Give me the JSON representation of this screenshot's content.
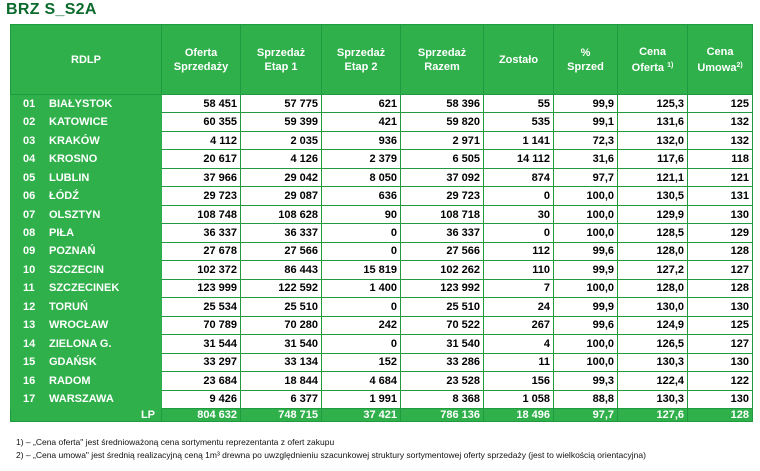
{
  "title": "BRZ S_S2A",
  "headers": {
    "rdlp": "RDLP",
    "oferta": [
      "Oferta",
      "Sprzedaży"
    ],
    "etap1": [
      "Sprzedaż",
      "Etap 1"
    ],
    "etap2": [
      "Sprzedaż",
      "Etap 2"
    ],
    "razem": [
      "Sprzedaż",
      "Razem"
    ],
    "zostalo": "Zostało",
    "proc": [
      "%",
      "Sprzed"
    ],
    "cena_oferta": [
      "Cena",
      "Oferta",
      "1)"
    ],
    "cena_umowa": [
      "Cena",
      "Umowa",
      "2)"
    ]
  },
  "rows": [
    {
      "no": "01",
      "name": "BIAŁYSTOK",
      "oferta": "58 451",
      "etap1": "57 775",
      "etap2": "621",
      "razem": "58 396",
      "zostalo": "55",
      "proc": "99,9",
      "cena_oferta": "125,3",
      "cena_umowa": "125"
    },
    {
      "no": "02",
      "name": "KATOWICE",
      "oferta": "60 355",
      "etap1": "59 399",
      "etap2": "421",
      "razem": "59 820",
      "zostalo": "535",
      "proc": "99,1",
      "cena_oferta": "131,6",
      "cena_umowa": "132"
    },
    {
      "no": "03",
      "name": "KRAKÓW",
      "oferta": "4 112",
      "etap1": "2 035",
      "etap2": "936",
      "razem": "2 971",
      "zostalo": "1 141",
      "proc": "72,3",
      "cena_oferta": "132,0",
      "cena_umowa": "132"
    },
    {
      "no": "04",
      "name": "KROSNO",
      "oferta": "20 617",
      "etap1": "4 126",
      "etap2": "2 379",
      "razem": "6 505",
      "zostalo": "14 112",
      "proc": "31,6",
      "cena_oferta": "117,6",
      "cena_umowa": "118"
    },
    {
      "no": "05",
      "name": "LUBLIN",
      "oferta": "37 966",
      "etap1": "29 042",
      "etap2": "8 050",
      "razem": "37 092",
      "zostalo": "874",
      "proc": "97,7",
      "cena_oferta": "121,1",
      "cena_umowa": "121"
    },
    {
      "no": "06",
      "name": "ŁÓDŹ",
      "oferta": "29 723",
      "etap1": "29 087",
      "etap2": "636",
      "razem": "29 723",
      "zostalo": "0",
      "proc": "100,0",
      "cena_oferta": "130,5",
      "cena_umowa": "131"
    },
    {
      "no": "07",
      "name": "OLSZTYN",
      "oferta": "108 748",
      "etap1": "108 628",
      "etap2": "90",
      "razem": "108 718",
      "zostalo": "30",
      "proc": "100,0",
      "cena_oferta": "129,9",
      "cena_umowa": "130"
    },
    {
      "no": "08",
      "name": "PIŁA",
      "oferta": "36 337",
      "etap1": "36 337",
      "etap2": "0",
      "razem": "36 337",
      "zostalo": "0",
      "proc": "100,0",
      "cena_oferta": "128,5",
      "cena_umowa": "129"
    },
    {
      "no": "09",
      "name": "POZNAŃ",
      "oferta": "27 678",
      "etap1": "27 566",
      "etap2": "0",
      "razem": "27 566",
      "zostalo": "112",
      "proc": "99,6",
      "cena_oferta": "128,0",
      "cena_umowa": "128"
    },
    {
      "no": "10",
      "name": "SZCZECIN",
      "oferta": "102 372",
      "etap1": "86 443",
      "etap2": "15 819",
      "razem": "102 262",
      "zostalo": "110",
      "proc": "99,9",
      "cena_oferta": "127,2",
      "cena_umowa": "127"
    },
    {
      "no": "11",
      "name": "SZCZECINEK",
      "oferta": "123 999",
      "etap1": "122 592",
      "etap2": "1 400",
      "razem": "123 992",
      "zostalo": "7",
      "proc": "100,0",
      "cena_oferta": "128,0",
      "cena_umowa": "128"
    },
    {
      "no": "12",
      "name": "TORUŃ",
      "oferta": "25 534",
      "etap1": "25 510",
      "etap2": "0",
      "razem": "25 510",
      "zostalo": "24",
      "proc": "99,9",
      "cena_oferta": "130,0",
      "cena_umowa": "130"
    },
    {
      "no": "13",
      "name": "WROCŁAW",
      "oferta": "70 789",
      "etap1": "70 280",
      "etap2": "242",
      "razem": "70 522",
      "zostalo": "267",
      "proc": "99,6",
      "cena_oferta": "124,9",
      "cena_umowa": "125"
    },
    {
      "no": "14",
      "name": "ZIELONA G.",
      "oferta": "31 544",
      "etap1": "31 540",
      "etap2": "0",
      "razem": "31 540",
      "zostalo": "4",
      "proc": "100,0",
      "cena_oferta": "126,5",
      "cena_umowa": "127"
    },
    {
      "no": "15",
      "name": "GDAŃSK",
      "oferta": "33 297",
      "etap1": "33 134",
      "etap2": "152",
      "razem": "33 286",
      "zostalo": "11",
      "proc": "100,0",
      "cena_oferta": "130,3",
      "cena_umowa": "130"
    },
    {
      "no": "16",
      "name": "RADOM",
      "oferta": "23 684",
      "etap1": "18 844",
      "etap2": "4 684",
      "razem": "23 528",
      "zostalo": "156",
      "proc": "99,3",
      "cena_oferta": "122,4",
      "cena_umowa": "122"
    },
    {
      "no": "17",
      "name": "WARSZAWA",
      "oferta": "9 426",
      "etap1": "6 377",
      "etap2": "1 991",
      "razem": "8 368",
      "zostalo": "1 058",
      "proc": "88,8",
      "cena_oferta": "130,3",
      "cena_umowa": "130"
    }
  ],
  "total": {
    "label": "LP",
    "oferta": "804 632",
    "etap1": "748 715",
    "etap2": "37 421",
    "razem": "786 136",
    "zostalo": "18 496",
    "proc": "97,7",
    "cena_oferta": "127,6",
    "cena_umowa": "128"
  },
  "notes": [
    "1) – „Cena oferta\" jest średnioważoną cena sortymentu reprezentanta z ofert zakupu",
    "2) – „Cena umowa\" jest średnią realizacyjną ceną 1m³ drewna po uwzględnieniu szacunkowej struktury sortymentowej oferty sprzedaży (jest to wielkością orientacyjna)"
  ],
  "colors": {
    "header_green": "#2fb04a",
    "title_green": "#0b6b2c",
    "border_green": "#1f9a3f"
  }
}
